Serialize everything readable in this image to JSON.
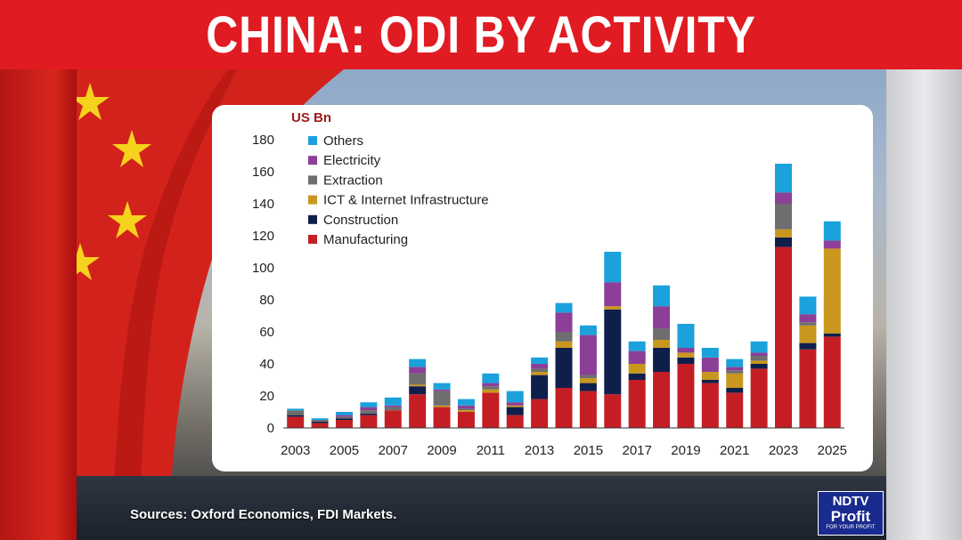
{
  "header": {
    "title": "CHINA: ODI BY ACTIVITY"
  },
  "footer": {
    "source": "Sources: Oxford Economics, FDI Markets."
  },
  "logo": {
    "line1": "NDTV",
    "line2": "Profit",
    "tagline": "FOR YOUR PROFIT"
  },
  "colors": {
    "title_bar": "#e11b22",
    "Others": "#1ba1dc",
    "Electricity": "#8b3f96",
    "Extraction": "#6e6e6e",
    "ICT & Internet Infrastructure": "#c9971e",
    "Construction": "#0f1f4b",
    "Manufacturing": "#c41e24"
  },
  "chart_data": {
    "type": "bar",
    "stacked": true,
    "ylabel": "US Bn",
    "ylim": [
      0,
      180
    ],
    "yticks": [
      0,
      20,
      40,
      60,
      80,
      100,
      120,
      140,
      160,
      180
    ],
    "categories": [
      "2003",
      "2004",
      "2005",
      "2006",
      "2007",
      "2008",
      "2009",
      "2010",
      "2011",
      "2012",
      "2013",
      "2014",
      "2015",
      "2016",
      "2017",
      "2018",
      "2019",
      "2020",
      "2021",
      "2022",
      "2023",
      "2024",
      "2025"
    ],
    "xtick_labels": [
      "2003",
      "2005",
      "2007",
      "2009",
      "2011",
      "2013",
      "2015",
      "2017",
      "2019",
      "2021",
      "2023",
      "2025"
    ],
    "legend": [
      "Others",
      "Electricity",
      "Extraction",
      "ICT & Internet Infrastructure",
      "Construction",
      "Manufacturing"
    ],
    "series": [
      {
        "name": "Manufacturing",
        "values": [
          7,
          3,
          5,
          8,
          11,
          21,
          13,
          10,
          22,
          8,
          18,
          25,
          23,
          21,
          30,
          35,
          40,
          28,
          22,
          37,
          113,
          49,
          57
        ]
      },
      {
        "name": "Construction",
        "values": [
          1,
          1,
          1,
          1,
          0,
          5,
          0,
          0,
          0,
          5,
          15,
          25,
          5,
          53,
          4,
          15,
          4,
          2,
          3,
          3,
          6,
          4,
          2
        ]
      },
      {
        "name": "ICT & Internet Infrastructure",
        "values": [
          0,
          0,
          0,
          0,
          0,
          1,
          1,
          1,
          2,
          1,
          2,
          4,
          3,
          2,
          6,
          5,
          3,
          5,
          9,
          2,
          5,
          11,
          53
        ]
      },
      {
        "name": "Extraction",
        "values": [
          3,
          1,
          1,
          2,
          2,
          7,
          9,
          1,
          2,
          0,
          2,
          6,
          2,
          0,
          0,
          7,
          0,
          0,
          2,
          3,
          16,
          2,
          0
        ]
      },
      {
        "name": "Electricity",
        "values": [
          0,
          0,
          1,
          2,
          1,
          4,
          1,
          2,
          2,
          2,
          3,
          12,
          25,
          15,
          8,
          14,
          3,
          9,
          2,
          2,
          7,
          5,
          5
        ]
      },
      {
        "name": "Others",
        "values": [
          1,
          1,
          2,
          3,
          5,
          5,
          4,
          4,
          6,
          7,
          4,
          6,
          6,
          19,
          6,
          13,
          15,
          6,
          5,
          7,
          18,
          11,
          12
        ]
      }
    ]
  }
}
